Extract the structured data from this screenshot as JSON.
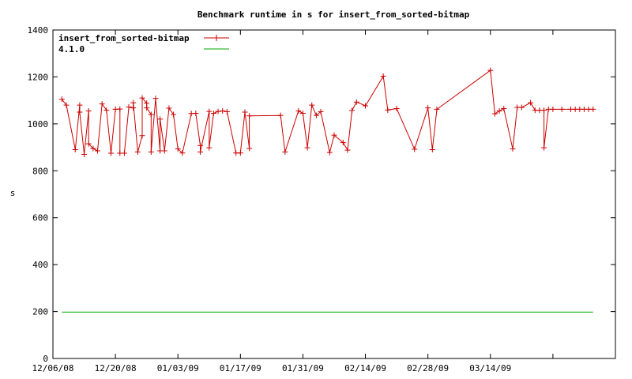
{
  "chart_data": {
    "type": "line",
    "title": "Benchmark runtime in s for insert_from_sorted-bitmap",
    "xlabel": "",
    "ylabel": "s",
    "ylim": [
      0,
      1400
    ],
    "y_ticks": [
      0,
      200,
      400,
      600,
      800,
      1000,
      1200,
      1400
    ],
    "x_ticks": [
      "12/06/08",
      "12/20/08",
      "01/03/09",
      "01/17/09",
      "01/31/09",
      "02/14/09",
      "02/28/09",
      "03/14/09"
    ],
    "grid": false,
    "legend_position": "top-left",
    "series": [
      {
        "name": "insert_from_sorted-bitmap",
        "color": "#cc0000",
        "marker": "plus",
        "x": [
          "2008-12-08",
          "2008-12-09",
          "2008-12-11",
          "2008-12-12",
          "2008-12-12",
          "2008-12-13",
          "2008-12-14",
          "2008-12-14",
          "2008-12-15",
          "2008-12-16",
          "2008-12-17",
          "2008-12-18",
          "2008-12-19",
          "2008-12-20",
          "2008-12-21",
          "2008-12-21",
          "2008-12-22",
          "2008-12-23",
          "2008-12-24",
          "2008-12-24",
          "2008-12-25",
          "2008-12-26",
          "2008-12-26",
          "2008-12-27",
          "2008-12-27",
          "2008-12-28",
          "2008-12-28",
          "2008-12-29",
          "2008-12-30",
          "2008-12-30",
          "2008-12-31",
          "2009-01-01",
          "2009-01-02",
          "2009-01-03",
          "2009-01-04",
          "2009-01-06",
          "2009-01-07",
          "2009-01-08",
          "2009-01-08",
          "2009-01-10",
          "2009-01-10",
          "2009-01-11",
          "2009-01-12",
          "2009-01-13",
          "2009-01-14",
          "2009-01-16",
          "2009-01-17",
          "2009-01-18",
          "2009-01-19",
          "2009-01-19",
          "2009-01-26",
          "2009-01-27",
          "2009-01-30",
          "2009-01-31",
          "2009-02-01",
          "2009-02-02",
          "2009-02-03",
          "2009-02-04",
          "2009-02-06",
          "2009-02-07",
          "2009-02-09",
          "2009-02-10",
          "2009-02-11",
          "2009-02-12",
          "2009-02-14",
          "2009-02-18",
          "2009-02-19",
          "2009-02-21",
          "2009-02-25",
          "2009-02-28",
          "2009-03-01",
          "2009-03-02",
          "2009-03-14",
          "2009-03-15",
          "2009-03-16",
          "2009-03-17",
          "2009-03-19",
          "2009-03-20",
          "2009-03-21",
          "2009-03-23",
          "2009-03-24",
          "2009-03-25",
          "2009-03-26",
          "2009-03-26",
          "2009-03-27",
          "2009-03-28",
          "2009-03-30",
          "2009-04-01",
          "2009-04-02",
          "2009-04-03",
          "2009-04-04",
          "2009-04-05",
          "2009-04-06"
        ],
        "values": [
          1105,
          1080,
          890,
          1080,
          1050,
          870,
          1055,
          915,
          895,
          885,
          1085,
          1058,
          875,
          1062,
          1063,
          875,
          875,
          1072,
          1068,
          1090,
          880,
          950,
          1110,
          1088,
          1068,
          1040,
          880,
          1108,
          885,
          1020,
          885,
          1067,
          1040,
          893,
          876,
          1044,
          1045,
          908,
          880,
          1053,
          898,
          1045,
          1053,
          1055,
          1052,
          876,
          876,
          1050,
          895,
          1034,
          1036,
          880,
          1055,
          1045,
          898,
          1080,
          1036,
          1052,
          878,
          952,
          920,
          888,
          1057,
          1093,
          1077,
          1203,
          1059,
          1065,
          892,
          1068,
          890,
          1062,
          1228,
          1043,
          1055,
          1065,
          893,
          1070,
          1070,
          1090,
          1058,
          1058,
          1058,
          898,
          1062,
          1062,
          1062,
          1062,
          1062,
          1062,
          1062,
          1062,
          1062
        ]
      },
      {
        "name": "4.1.0",
        "color": "#00aa00",
        "marker": "none",
        "x": [
          "2008-12-08",
          "2009-04-06"
        ],
        "values": [
          198,
          198
        ]
      }
    ]
  }
}
